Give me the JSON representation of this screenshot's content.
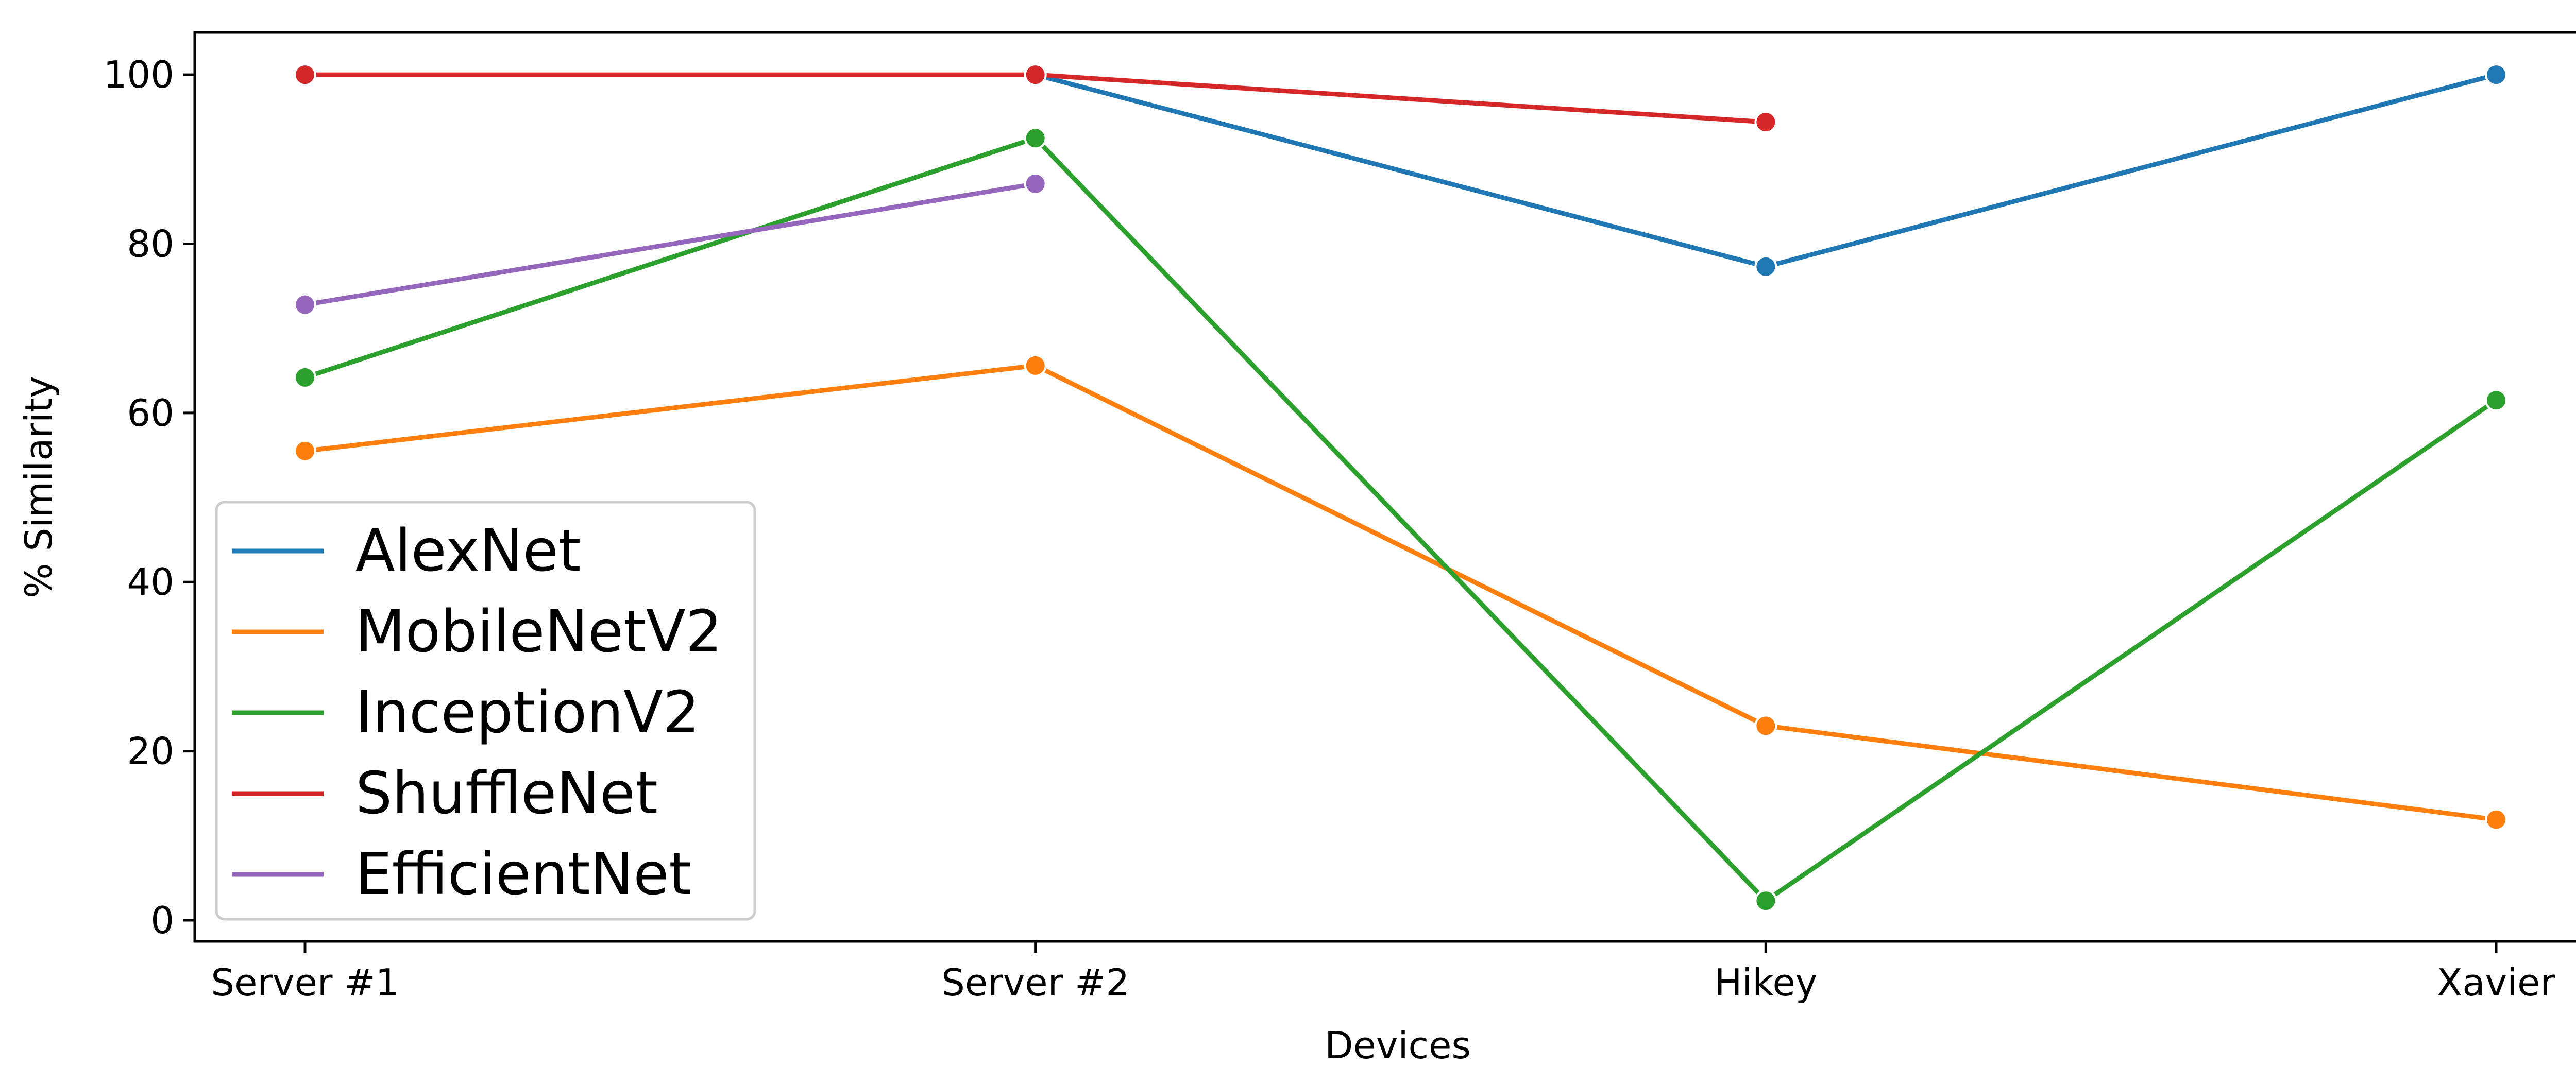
{
  "chart_data": {
    "type": "line",
    "title": "",
    "xlabel": "Devices",
    "ylabel": "% Similarity",
    "categories": [
      "Server #1",
      "Server #2",
      "Hikey",
      "Xavier"
    ],
    "yticks": [
      0,
      20,
      40,
      60,
      80,
      100
    ],
    "ylim": [
      -2.5,
      105
    ],
    "grid": false,
    "legend_position": "lower-left",
    "series": [
      {
        "name": "AlexNet",
        "color": "#1f77b4",
        "values": [
          null,
          100,
          77.3,
          100
        ]
      },
      {
        "name": "MobileNetV2",
        "color": "#ff7f0e",
        "values": [
          55.5,
          65.6,
          23.0,
          11.9
        ]
      },
      {
        "name": "InceptionV2",
        "color": "#2ca02c",
        "values": [
          64.2,
          92.5,
          2.3,
          61.5
        ]
      },
      {
        "name": "ShuffleNet",
        "color": "#d62728",
        "values": [
          100,
          100,
          94.4,
          null
        ]
      },
      {
        "name": "EfficientNet",
        "color": "#9467bd",
        "values": [
          72.8,
          87.1,
          null,
          null
        ]
      }
    ]
  }
}
